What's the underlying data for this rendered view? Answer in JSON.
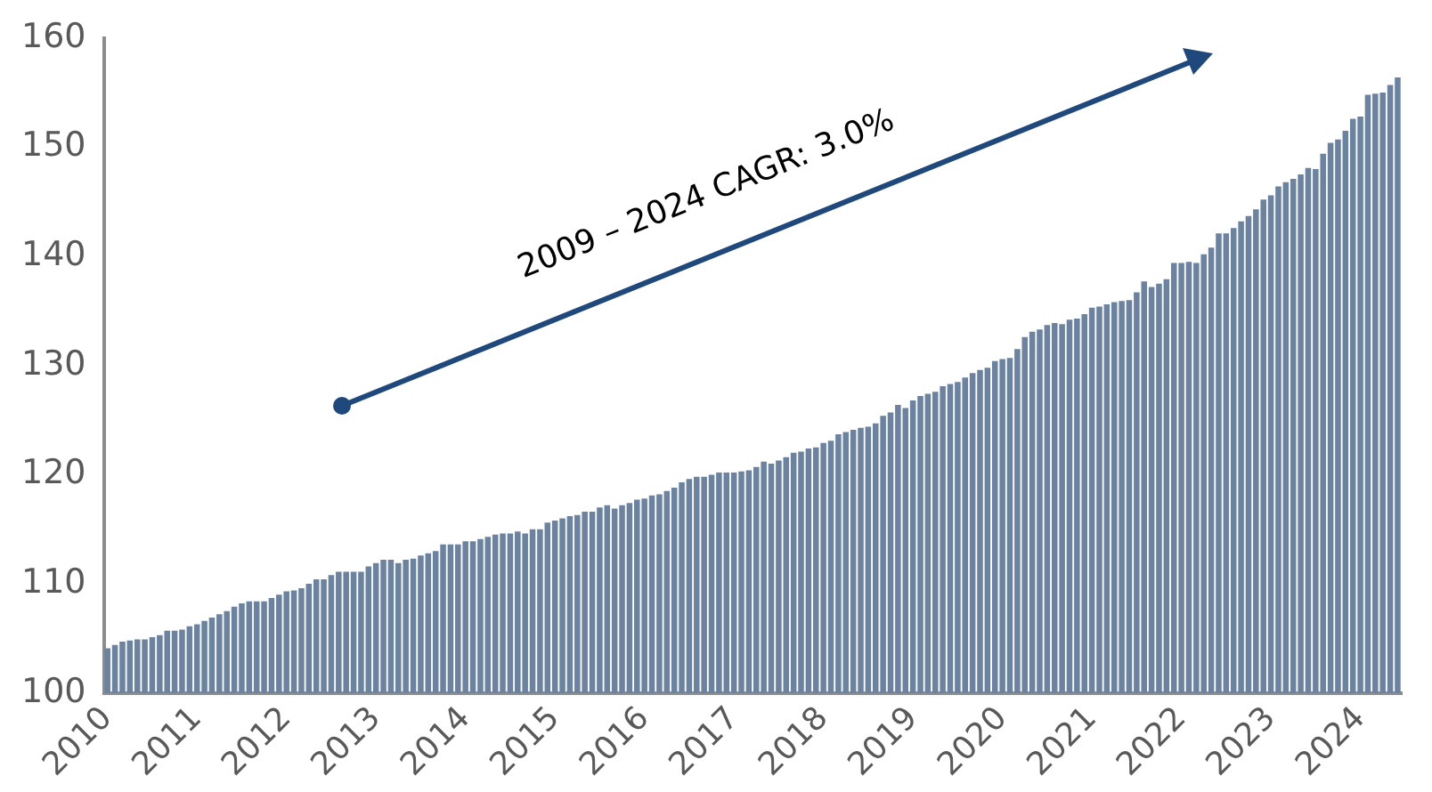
{
  "chart_data": {
    "type": "bar",
    "color": "#6b83a1",
    "grid": false,
    "ylim": [
      100,
      160
    ],
    "yticks": [
      100,
      110,
      120,
      130,
      140,
      150,
      160
    ],
    "annotations": [
      "2009 – 2024 CAGR: 3.0%"
    ],
    "categories": [
      "2010",
      null,
      null,
      null,
      null,
      null,
      null,
      null,
      null,
      null,
      null,
      null,
      "2011",
      null,
      null,
      null,
      null,
      null,
      null,
      null,
      null,
      null,
      null,
      null,
      "2012",
      null,
      null,
      null,
      null,
      null,
      null,
      null,
      null,
      null,
      null,
      null,
      "2013",
      null,
      null,
      null,
      null,
      null,
      null,
      null,
      null,
      null,
      null,
      null,
      "2014",
      null,
      null,
      null,
      null,
      null,
      null,
      null,
      null,
      null,
      null,
      null,
      "2015",
      null,
      null,
      null,
      null,
      null,
      null,
      null,
      null,
      null,
      null,
      null,
      "2016",
      null,
      null,
      null,
      null,
      null,
      null,
      null,
      null,
      null,
      null,
      null,
      "2017",
      null,
      null,
      null,
      null,
      null,
      null,
      null,
      null,
      null,
      null,
      null,
      "2018",
      null,
      null,
      null,
      null,
      null,
      null,
      null,
      null,
      null,
      null,
      null,
      "2019",
      null,
      null,
      null,
      null,
      null,
      null,
      null,
      null,
      null,
      null,
      null,
      "2020",
      null,
      null,
      null,
      null,
      null,
      null,
      null,
      null,
      null,
      null,
      null,
      "2021",
      null,
      null,
      null,
      null,
      null,
      null,
      null,
      null,
      null,
      null,
      null,
      "2022",
      null,
      null,
      null,
      null,
      null,
      null,
      null,
      null,
      null,
      null,
      null,
      "2023",
      null,
      null,
      null,
      null,
      null,
      null,
      null,
      null,
      null,
      null,
      null,
      "2024",
      null,
      null,
      null,
      null,
      null
    ],
    "values": [
      104.1,
      104.4,
      104.7,
      104.8,
      104.9,
      104.9,
      105.1,
      105.3,
      105.7,
      105.7,
      105.8,
      106.1,
      106.3,
      106.6,
      106.9,
      107.2,
      107.5,
      107.9,
      108.2,
      108.4,
      108.4,
      108.4,
      108.7,
      109.0,
      109.3,
      109.4,
      109.6,
      110.0,
      110.4,
      110.4,
      110.8,
      111.1,
      111.1,
      111.1,
      111.1,
      111.6,
      111.9,
      112.2,
      112.2,
      111.9,
      112.2,
      112.3,
      112.6,
      112.8,
      113.0,
      113.6,
      113.6,
      113.6,
      113.9,
      113.9,
      114.1,
      114.3,
      114.5,
      114.6,
      114.6,
      114.8,
      114.6,
      115.0,
      115.0,
      115.6,
      115.8,
      116.0,
      116.2,
      116.3,
      116.6,
      116.6,
      117.0,
      117.2,
      116.9,
      117.2,
      117.4,
      117.7,
      117.8,
      118.1,
      118.2,
      118.5,
      118.8,
      119.3,
      119.6,
      119.8,
      119.8,
      120.0,
      120.2,
      120.2,
      120.2,
      120.3,
      120.4,
      120.7,
      121.2,
      121.0,
      121.3,
      121.6,
      122.0,
      122.1,
      122.4,
      122.5,
      122.9,
      123.1,
      123.7,
      123.9,
      124.1,
      124.3,
      124.4,
      124.7,
      125.4,
      125.7,
      126.4,
      126.1,
      126.8,
      127.2,
      127.4,
      127.6,
      128.1,
      128.3,
      128.5,
      128.9,
      129.3,
      129.6,
      129.8,
      130.4,
      130.6,
      130.7,
      131.5,
      132.6,
      133.1,
      133.3,
      133.7,
      133.9,
      133.8,
      134.2,
      134.3,
      134.7,
      135.3,
      135.4,
      135.6,
      135.8,
      135.9,
      136.0,
      136.7,
      137.7,
      137.2,
      137.5,
      137.9,
      139.4,
      139.4,
      139.5,
      139.4,
      140.2,
      140.8,
      142.1,
      142.1,
      142.6,
      143.2,
      143.7,
      144.3,
      145.2,
      145.6,
      146.4,
      146.8,
      147.1,
      147.5,
      148.1,
      148.0,
      149.4,
      150.4,
      150.7,
      151.5,
      152.6,
      152.8,
      154.8,
      154.9,
      155.0,
      155.7,
      156.4
    ]
  }
}
